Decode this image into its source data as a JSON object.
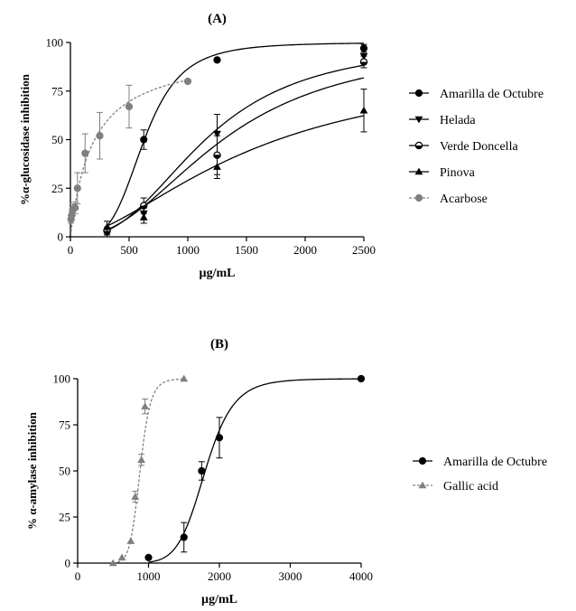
{
  "chart_data": [
    {
      "type": "scatter",
      "panel_label": "(A)",
      "xlabel": "µg/mL",
      "ylabel": "%α-glucosidase inhibition",
      "xlim": [
        0,
        2500
      ],
      "ylim": [
        0,
        100
      ],
      "xticks": [
        0,
        500,
        1000,
        1500,
        2000,
        2500
      ],
      "yticks": [
        0,
        25,
        50,
        75,
        100
      ],
      "grid": false,
      "legend_position": "right",
      "series": [
        {
          "name": "Amarilla de Octubre",
          "marker": "circle",
          "color": "#000000",
          "line": "solid",
          "fit": "sigmoid",
          "fit_params": {
            "bottom": 0,
            "top": 100,
            "ec50": 630,
            "hill": 4
          },
          "points": [
            {
              "x": 312,
              "y": 3,
              "err": 2
            },
            {
              "x": 625,
              "y": 50,
              "err": 5
            },
            {
              "x": 1250,
              "y": 91,
              "err": 1
            },
            {
              "x": 2500,
              "y": 97,
              "err": 2
            }
          ]
        },
        {
          "name": "Helada",
          "marker": "triangle-down",
          "color": "#000000",
          "line": "solid",
          "fit": "sigmoid",
          "fit_params": {
            "bottom": 0,
            "top": 100,
            "ec50": 1150,
            "hill": 2.6
          },
          "points": [
            {
              "x": 312,
              "y": 2,
              "err": 1
            },
            {
              "x": 625,
              "y": 12,
              "err": 3
            },
            {
              "x": 1250,
              "y": 53,
              "err": 10
            },
            {
              "x": 2500,
              "y": 93,
              "err": 4
            }
          ]
        },
        {
          "name": "Verde Doncella",
          "marker": "circle-half",
          "color": "#000000",
          "line": "solid",
          "fit": "sigmoid",
          "fit_params": {
            "bottom": 0,
            "top": 100,
            "ec50": 1300,
            "hill": 2.3
          },
          "points": [
            {
              "x": 312,
              "y": 3,
              "err": 1
            },
            {
              "x": 625,
              "y": 16,
              "err": 4
            },
            {
              "x": 1250,
              "y": 42,
              "err": 10
            },
            {
              "x": 2500,
              "y": 90,
              "err": 3
            }
          ]
        },
        {
          "name": "Pinova",
          "marker": "triangle-up",
          "color": "#000000",
          "line": "solid",
          "fit": "sigmoid",
          "fit_params": {
            "bottom": 0,
            "top": 90,
            "ec50": 1550,
            "hill": 1.7
          },
          "points": [
            {
              "x": 312,
              "y": 5,
              "err": 3
            },
            {
              "x": 625,
              "y": 10,
              "err": 3
            },
            {
              "x": 1250,
              "y": 36,
              "err": 6
            },
            {
              "x": 2500,
              "y": 65,
              "err": 11
            }
          ]
        },
        {
          "name": "Acarbose",
          "marker": "circle",
          "color": "#7f7f7f",
          "line": "dashed",
          "fit": "hyperbolic",
          "fit_params": {
            "ymax": 96,
            "km": 190
          },
          "points": [
            {
              "x": 5,
              "y": 9,
              "err": 2
            },
            {
              "x": 10,
              "y": 11,
              "err": 2
            },
            {
              "x": 20,
              "y": 14,
              "err": 3
            },
            {
              "x": 40,
              "y": 15,
              "err": 3
            },
            {
              "x": 60,
              "y": 25,
              "err": 8
            },
            {
              "x": 125,
              "y": 43,
              "err": 10
            },
            {
              "x": 250,
              "y": 52,
              "err": 12
            },
            {
              "x": 500,
              "y": 67,
              "err": 11
            },
            {
              "x": 1000,
              "y": 80,
              "err": 0
            }
          ]
        }
      ]
    },
    {
      "type": "scatter",
      "panel_label": "(B)",
      "xlabel": "µg/mL",
      "ylabel": "% α-amylase inhibition",
      "xlim": [
        0,
        4000
      ],
      "ylim": [
        0,
        100
      ],
      "xticks": [
        0,
        1000,
        2000,
        3000,
        4000
      ],
      "yticks": [
        0,
        25,
        50,
        75,
        100
      ],
      "grid": false,
      "legend_position": "right",
      "series": [
        {
          "name": "Amarilla de Octubre",
          "marker": "circle",
          "color": "#000000",
          "line": "solid",
          "fit": "sigmoid",
          "fit_params": {
            "bottom": 0,
            "top": 100,
            "ec50": 1800,
            "hill": 9
          },
          "points": [
            {
              "x": 1000,
              "y": 3,
              "err": 0
            },
            {
              "x": 1500,
              "y": 14,
              "err": 8
            },
            {
              "x": 1750,
              "y": 50,
              "err": 5
            },
            {
              "x": 2000,
              "y": 68,
              "err": 11
            },
            {
              "x": 4000,
              "y": 100,
              "err": 0
            }
          ]
        },
        {
          "name": "Gallic acid",
          "marker": "triangle-up",
          "color": "#7f7f7f",
          "line": "dashed",
          "fit": "sigmoid",
          "fit_params": {
            "bottom": 0,
            "top": 100,
            "ec50": 880,
            "hill": 12
          },
          "points": [
            {
              "x": 500,
              "y": 0,
              "err": 0
            },
            {
              "x": 625,
              "y": 3,
              "err": 0
            },
            {
              "x": 750,
              "y": 12,
              "err": 0
            },
            {
              "x": 812,
              "y": 36,
              "err": 3
            },
            {
              "x": 900,
              "y": 56,
              "err": 3
            },
            {
              "x": 950,
              "y": 85,
              "err": 4
            },
            {
              "x": 1500,
              "y": 100,
              "err": 0
            }
          ]
        }
      ]
    }
  ]
}
